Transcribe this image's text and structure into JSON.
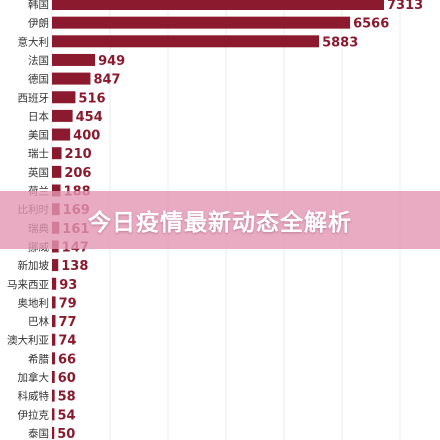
{
  "overlay": {
    "title": "今日疫情最新动态全解析"
  },
  "chart_data": {
    "type": "bar",
    "orientation": "horizontal",
    "bar_color": "#8b1a2f",
    "categories": [
      "韩国",
      "伊朗",
      "意大利",
      "法国",
      "德国",
      "西班牙",
      "日本",
      "美国",
      "瑞士",
      "英国",
      "荷兰",
      "比利时",
      "瑞典",
      "挪威",
      "新加坡",
      "马来西亚",
      "奥地利",
      "巴林",
      "澳大利亚",
      "希腊",
      "加拿大",
      "科威特",
      "伊拉克",
      "泰国"
    ],
    "values": [
      7313,
      6566,
      5883,
      949,
      847,
      516,
      454,
      400,
      210,
      206,
      188,
      169,
      161,
      147,
      138,
      93,
      79,
      77,
      74,
      66,
      60,
      58,
      54,
      50
    ],
    "value_labels": [
      "7313",
      "6566",
      "5883",
      "949",
      "847",
      "516",
      "454",
      "400",
      "210",
      "206",
      "188",
      "169",
      "161",
      "147",
      "138",
      "93",
      "79",
      "77",
      "74",
      "66",
      "60",
      "58",
      "54",
      "50"
    ],
    "grid": true
  }
}
